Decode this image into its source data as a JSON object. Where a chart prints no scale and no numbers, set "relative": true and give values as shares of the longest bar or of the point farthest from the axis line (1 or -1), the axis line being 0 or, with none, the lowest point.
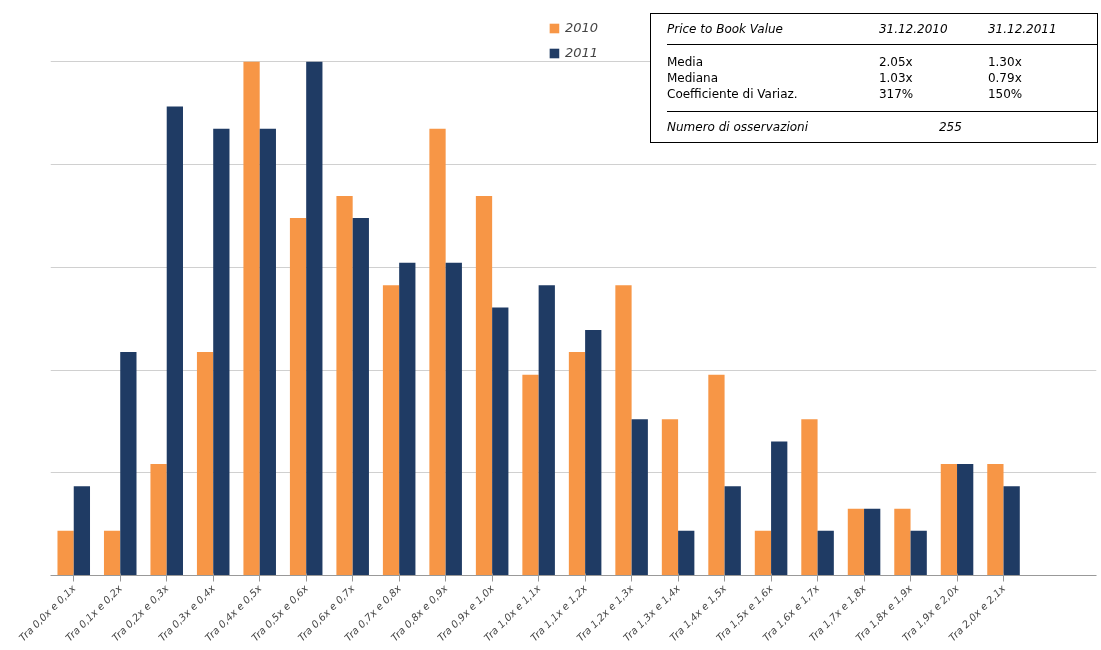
{
  "chart_data": {
    "type": "bar",
    "relative": true,
    "grid": "y",
    "legend": "top",
    "categories": [
      "Tra 0,0x e 0,1x",
      "Tra 0,1x e 0,2x",
      "Tra 0,2x e 0,3x",
      "Tra 0,3x e 0,4x",
      "Tra 0,4x e 0,5x",
      "Tra 0,5x e 0,6x",
      "Tra 0,6x e 0,7x",
      "Tra 0,7x e 0,8x",
      "Tra 0,8x e 0,9x",
      "Tra 0,9x e 1,0x",
      "Tra 1,0x e 1,1x",
      "Tra 1,1x e 1,2x",
      "Tra 1,2x e 1,3x",
      "Tra 1,3x e 1,4x",
      "Tra 1,4x e 1,5x",
      "Tra 1,5x e 1,6x",
      "Tra 1,6x e 1,7x",
      "Tra 1,7x e 1,8x",
      "Tra 1,8x e 1,9x",
      "Tra 1,9x e 2,0x",
      "Tra 2,0x e 2,1x"
    ],
    "series": [
      {
        "name": "2010",
        "color": "#f79646",
        "values": [
          0.087,
          0.087,
          0.217,
          0.435,
          1,
          0.696,
          0.739,
          0.565,
          0.87,
          0.739,
          0.391,
          0.435,
          0.565,
          0.304,
          0.391,
          0.087,
          0.304,
          0.13,
          0.13,
          0.217,
          0.217
        ]
      },
      {
        "name": "2011",
        "color": "#1f3b64",
        "values": [
          0.174,
          0.435,
          0.913,
          0.87,
          0.87,
          1,
          0.696,
          0.609,
          0.609,
          0.522,
          0.565,
          0.478,
          0.304,
          0.087,
          0.174,
          0.261,
          0.087,
          0.13,
          0.087,
          0.217,
          0.174
        ]
      }
    ],
    "annotations": [
      "Price to Book Value",
      "31.12.2010",
      "31.12.2011",
      "Media",
      "2.05x",
      "1.30x",
      "Mediana",
      "1.03x",
      "0.79x",
      "Coefficiente di Variaz.",
      "317%",
      "150%",
      "Numero di osservazioni",
      "255"
    ]
  }
}
